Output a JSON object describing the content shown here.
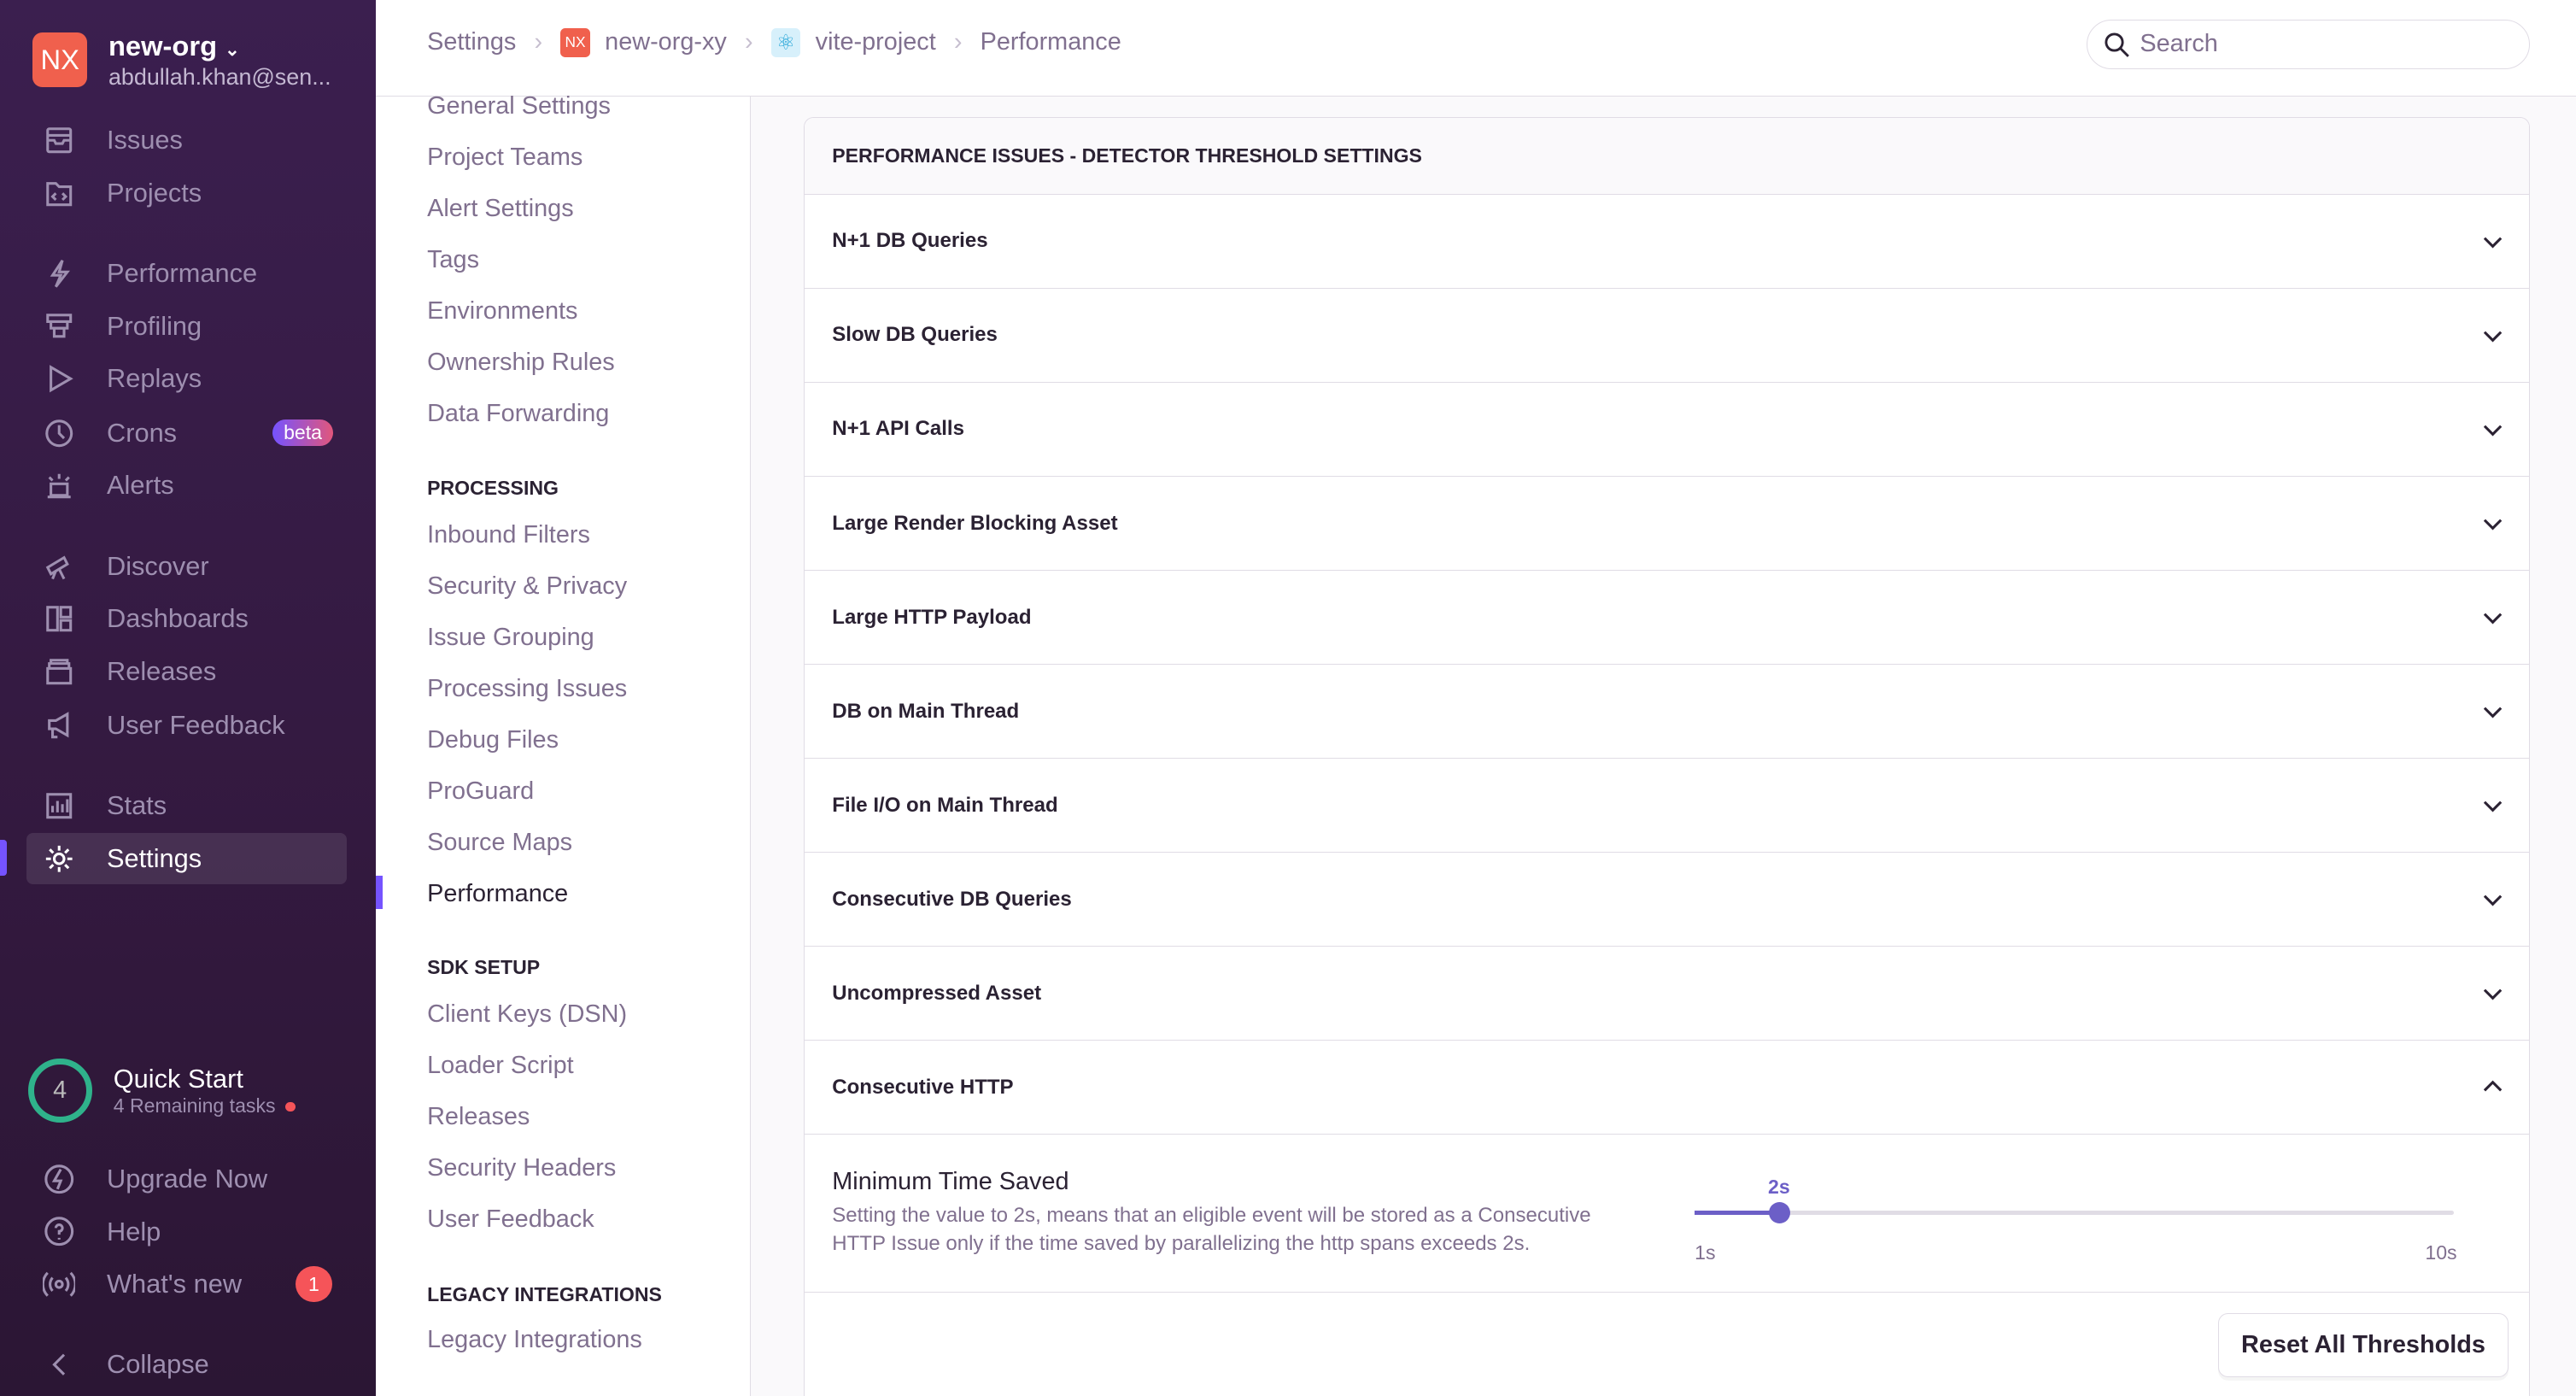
{
  "org": {
    "initials": "NX",
    "name": "new-org",
    "email": "abdullah.khan@sen...",
    "color": "#f0604d"
  },
  "sidebar": {
    "items": [
      {
        "label": "Issues",
        "icon": "issues-icon"
      },
      {
        "label": "Projects",
        "icon": "projects-icon"
      },
      {
        "label": "Performance",
        "icon": "lightning-icon"
      },
      {
        "label": "Profiling",
        "icon": "profiling-icon"
      },
      {
        "label": "Replays",
        "icon": "play-icon"
      },
      {
        "label": "Crons",
        "icon": "clock-icon",
        "badge": "beta"
      },
      {
        "label": "Alerts",
        "icon": "siren-icon"
      },
      {
        "label": "Discover",
        "icon": "telescope-icon"
      },
      {
        "label": "Dashboards",
        "icon": "dashboard-icon"
      },
      {
        "label": "Releases",
        "icon": "package-icon"
      },
      {
        "label": "User Feedback",
        "icon": "megaphone-icon"
      },
      {
        "label": "Stats",
        "icon": "stats-icon"
      },
      {
        "label": "Settings",
        "icon": "gear-icon",
        "active": true
      }
    ],
    "quick_start": {
      "count": "4",
      "title": "Quick Start",
      "subtitle": "4 Remaining tasks"
    },
    "bottom": [
      {
        "label": "Upgrade Now"
      },
      {
        "label": "Help"
      },
      {
        "label": "What's new",
        "count": "1"
      },
      {
        "label": "Collapse"
      }
    ]
  },
  "breadcrumbs": [
    "Settings",
    "new-org-xy",
    "vite-project",
    "Performance"
  ],
  "breadcrumb_badge": "NX",
  "search": {
    "placeholder": "Search"
  },
  "subnav": {
    "general": [
      "General Settings",
      "Project Teams",
      "Alert Settings",
      "Tags",
      "Environments",
      "Ownership Rules",
      "Data Forwarding"
    ],
    "processing_heading": "PROCESSING",
    "processing": [
      "Inbound Filters",
      "Security & Privacy",
      "Issue Grouping",
      "Processing Issues",
      "Debug Files",
      "ProGuard",
      "Source Maps",
      "Performance"
    ],
    "sdk_heading": "SDK SETUP",
    "sdk": [
      "Client Keys (DSN)",
      "Loader Script",
      "Releases",
      "Security Headers",
      "User Feedback"
    ],
    "legacy_heading": "LEGACY INTEGRATIONS",
    "legacy": [
      "Legacy Integrations"
    ]
  },
  "panel": {
    "title": "PERFORMANCE ISSUES - DETECTOR THRESHOLD SETTINGS",
    "detectors": [
      {
        "label": "N+1 DB Queries",
        "expanded": false
      },
      {
        "label": "Slow DB Queries",
        "expanded": false
      },
      {
        "label": "N+1 API Calls",
        "expanded": false
      },
      {
        "label": "Large Render Blocking Asset",
        "expanded": false
      },
      {
        "label": "Large HTTP Payload",
        "expanded": false
      },
      {
        "label": "DB on Main Thread",
        "expanded": false
      },
      {
        "label": "File I/O on Main Thread",
        "expanded": false
      },
      {
        "label": "Consecutive DB Queries",
        "expanded": false
      },
      {
        "label": "Uncompressed Asset",
        "expanded": false
      },
      {
        "label": "Consecutive HTTP",
        "expanded": true
      }
    ],
    "field": {
      "title": "Minimum Time Saved",
      "description": "Setting the value to 2s, means that an eligible event will be stored as a Consecutive HTTP Issue only if the time saved by parallelizing the http spans exceeds 2s.",
      "value": 2,
      "value_label": "2s",
      "min": 1,
      "max": 10,
      "min_label": "1s",
      "max_label": "10s",
      "accent": "#6c5fc7"
    },
    "reset_label": "Reset All Thresholds"
  }
}
